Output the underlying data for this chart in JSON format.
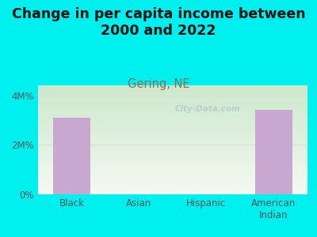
{
  "title": "Change in per capita income between\n2000 and 2022",
  "subtitle": "Gering, NE",
  "categories": [
    "Black",
    "Asian",
    "Hispanic",
    "American\nIndian"
  ],
  "values": [
    3100000,
    0,
    0,
    3400000
  ],
  "bar_color": "#c8a8d0",
  "background_color": "#00EFEF",
  "plot_bg_top_left": "#cce8cc",
  "plot_bg_bottom_right": "#f0f8f0",
  "yticks": [
    0,
    2000000,
    4000000
  ],
  "ytick_labels": [
    "0%",
    "2M%",
    "4M%"
  ],
  "ylim": [
    0,
    4400000
  ],
  "title_fontsize": 12.5,
  "subtitle_fontsize": 10.5,
  "subtitle_color": "#996655",
  "title_color": "#111111",
  "tick_color": "#555555",
  "watermark": "City-Data.com",
  "grid_color": "#dddddd"
}
